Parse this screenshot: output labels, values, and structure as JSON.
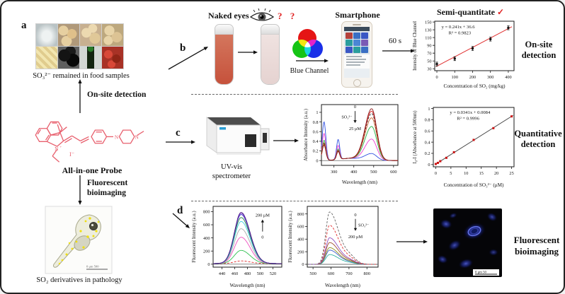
{
  "figure": {
    "panel_a": "a",
    "panel_b": "b",
    "panel_c": "c",
    "panel_d": "d"
  },
  "left_column": {
    "food_caption": "SO₃²⁻ remained in food samples",
    "onsite_arrow_label": "On-site detection",
    "probe": {
      "label": "All-in-one Probe",
      "counterion": "I⁻",
      "plus": "+",
      "atoms": [
        "N",
        "N",
        "N"
      ],
      "color": "#e8606e"
    },
    "bioimaging_arrow_label_line1": "Fluorescent",
    "bioimaging_arrow_label_line2": "bioimaging",
    "zebrafish_scalebar": "0   μm   500",
    "zebrafish_caption": "SO₂ derivatives in pathology"
  },
  "row_b": {
    "naked_eyes_label": "Naked eyes",
    "question_marks": "? ?",
    "blue_channel_label": "Blue Channel",
    "smartphone_label": "Smartphone",
    "time_label": "60 s",
    "chart_title": "Semi-quantitate",
    "check_mark": "✓",
    "check_color": "#e02020"
  },
  "row_c": {
    "instrument_line1": "UV-vis",
    "instrument_line2": "spectrometer"
  },
  "right_labels": {
    "onsite_line1": "On-site",
    "onsite_line2": "detection",
    "quant_line1": "Quantitative",
    "quant_line2": "detection",
    "bio_line1": "Fluorescent",
    "bio_line2": "bioimaging"
  },
  "cells_scalebar": "0  μm  50",
  "chart_data": [
    {
      "mount": "chart-semi",
      "name": "semi-quantitate-chart",
      "type": "scatter",
      "title": "Semi-quantitate",
      "equation": "y = 0.241x + 36.6",
      "r2": "R² = 0.9823",
      "xlabel": "Concentration of SO₂ (mg/kg)",
      "ylabel": "Intensity of Blue Channel",
      "xlim": [
        -12,
        432
      ],
      "ylim": [
        25,
        152
      ],
      "xticks": [
        0,
        100,
        200,
        300,
        400
      ],
      "yticks": [
        30,
        50,
        70,
        90,
        110,
        130,
        150
      ],
      "points": [
        [
          0,
          42
        ],
        [
          100,
          56
        ],
        [
          200,
          82
        ],
        [
          300,
          106
        ],
        [
          400,
          135
        ]
      ],
      "yerr": 5,
      "point_color": "#111111",
      "fit": {
        "slope": 0.241,
        "intercept": 36.6,
        "x1": -5,
        "x2": 420,
        "color": "#e03030"
      }
    },
    {
      "mount": "chart-abs",
      "name": "absorbance-spectra-chart",
      "type": "spectra",
      "xlabel": "Wavelength (nm)",
      "ylabel": "Absorbance Intensity (a.u.)",
      "xlim": [
        237,
        622
      ],
      "ylim": [
        -0.1,
        1.16
      ],
      "xticks": [
        300,
        400,
        500,
        600
      ],
      "yticks": [
        0,
        0.2,
        0.4,
        0.6,
        0.8,
        1
      ],
      "zero_line": true,
      "peak_nm": 490,
      "width_left": 48,
      "width_right": 36,
      "uv_bumps": true,
      "annotation": {
        "top": "0",
        "side": "SO₃²⁻",
        "side_pos": "left",
        "bottom": "25 μM",
        "direction": "down"
      },
      "series": [
        {
          "color": "#3050e0",
          "a_peak": 0.14,
          "a_uv": 0.8
        },
        {
          "color": "#f040d0",
          "a_peak": 0.44,
          "a_uv": 0.56
        },
        {
          "color": "#28b44a",
          "a_peak": 0.7,
          "a_uv": 0.42
        },
        {
          "color": "#c86830",
          "a_peak": 0.88,
          "a_uv": 0.37
        },
        {
          "color": "#333333",
          "a_peak": 0.97,
          "a_uv": 0.35,
          "dash": true
        },
        {
          "color": "#d42020",
          "a_peak": 1.02,
          "a_uv": 0.33
        },
        {
          "color": "#8b1a1a",
          "a_peak": 1.07,
          "a_uv": 0.32
        }
      ]
    },
    {
      "mount": "chart-quant",
      "name": "quantitative-chart",
      "type": "scatter",
      "equation": "y = 0.0341x + 0.0084",
      "r2": "R² = 0.9996",
      "xlabel": "Concentration of SO₃²⁻ (μM)",
      "ylabel": "I₀-I (Absorbance at 500nm)",
      "xlim": [
        -0.8,
        25.8
      ],
      "ylim": [
        -0.04,
        1.02
      ],
      "xticks": [
        0,
        5,
        10,
        15,
        20,
        25
      ],
      "yticks": [
        0,
        0.2,
        0.4,
        0.6,
        0.8,
        1
      ],
      "points": [
        [
          0,
          0.01
        ],
        [
          0.7,
          0.03
        ],
        [
          1.5,
          0.06
        ],
        [
          3.5,
          0.12
        ],
        [
          6,
          0.22
        ],
        [
          12.5,
          0.44
        ],
        [
          19,
          0.65
        ],
        [
          25,
          0.86
        ]
      ],
      "point_color": "#cc1111",
      "marker": "square",
      "fit": {
        "slope": 0.0341,
        "intercept": 0.0084,
        "x1": 0,
        "x2": 25.5,
        "color": "#444444"
      }
    },
    {
      "mount": "chart-fluor-up",
      "name": "fluorescence-increase-chart",
      "type": "spectra",
      "xlabel": "Wavelength (nm)",
      "ylabel": "Fluorescent Intensity (a.u.)",
      "xlim": [
        426,
        534
      ],
      "ylim": [
        -45,
        880
      ],
      "xticks": [
        440,
        460,
        480,
        500,
        520
      ],
      "yticks": [
        0,
        200,
        400,
        600,
        800
      ],
      "zero_line": true,
      "peak_nm": 470,
      "width_left": 15,
      "width_right": 20,
      "baseline": 10,
      "annotation": {
        "top": "200 μM",
        "bottom": "0",
        "direction": "up"
      },
      "series": [
        {
          "color": "#e03030",
          "a_peak": 40,
          "dash": true
        },
        {
          "color": "#30c050",
          "a_peak": 200
        },
        {
          "color": "#f050c0",
          "a_peak": 400
        },
        {
          "color": "#aaaaaa",
          "a_peak": 530
        },
        {
          "color": "#40d0e0",
          "a_peak": 640
        },
        {
          "color": "#208040",
          "a_peak": 700
        },
        {
          "color": "#4040d0",
          "a_peak": 745
        },
        {
          "color": "#8040c0",
          "a_peak": 763
        },
        {
          "color": "#50208a",
          "a_peak": 778
        }
      ]
    },
    {
      "mount": "chart-fluor-down",
      "name": "fluorescence-decrease-chart",
      "type": "spectra",
      "xlabel": "Wavelength (nm)",
      "ylabel": "Fluorescent Intensity (a.u.)",
      "xlim": [
        468,
        862
      ],
      "ylim": [
        -45,
        920
      ],
      "xticks": [
        500,
        600,
        700,
        800
      ],
      "yticks": [
        0,
        200,
        400,
        600,
        800
      ],
      "zero_line": true,
      "peak_nm": 592,
      "width_left": 30,
      "width_right": 72,
      "shoulder": true,
      "annotation": {
        "top": "0",
        "side": "SO₃²⁻",
        "side_pos": "right",
        "bottom": "200 μM",
        "direction": "down"
      },
      "series": [
        {
          "color": "#30b0a0",
          "a_peak": 155
        },
        {
          "color": "#4060d0",
          "a_peak": 225
        },
        {
          "color": "#909020",
          "a_peak": 265
        },
        {
          "color": "#a05030",
          "a_peak": 345
        },
        {
          "color": "#9050c0",
          "a_peak": 420
        },
        {
          "color": "#e03030",
          "a_peak": 620,
          "dash": true
        },
        {
          "color": "#666666",
          "a_peak": 830,
          "dash": true
        }
      ]
    }
  ]
}
